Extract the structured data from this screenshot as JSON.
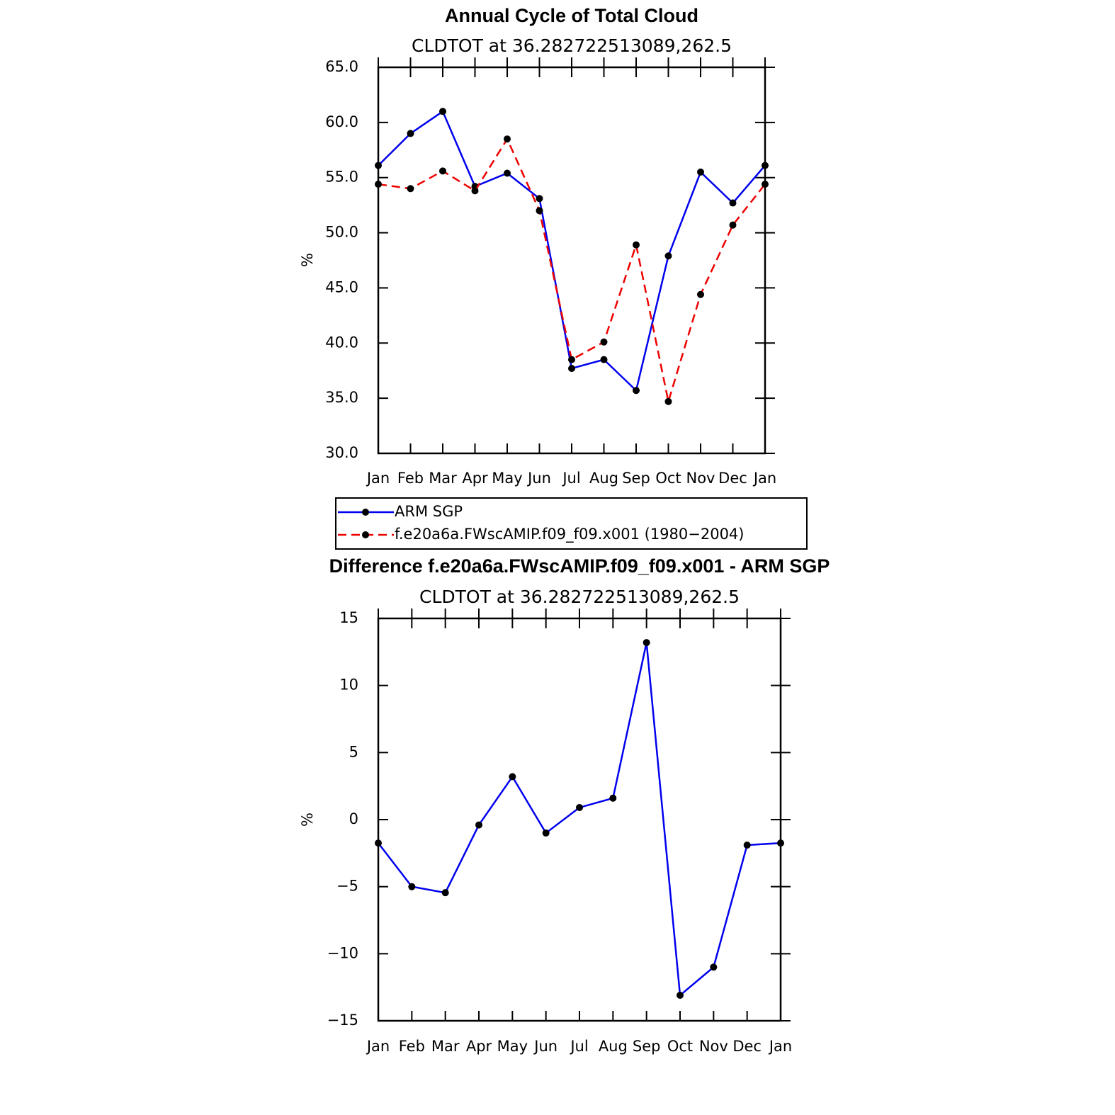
{
  "chart_data": [
    {
      "type": "line",
      "title": "Annual Cycle of Total Cloud",
      "subtitle": "CLDTOT at 36.282722513089,262.5",
      "y_label": "%",
      "categories": [
        "Jan",
        "Feb",
        "Mar",
        "Apr",
        "May",
        "Jun",
        "Jul",
        "Aug",
        "Sep",
        "Oct",
        "Nov",
        "Dec",
        "Jan"
      ],
      "ylim": [
        30,
        65
      ],
      "yticks": [
        {
          "value": 30,
          "label": "30.0"
        },
        {
          "value": 35,
          "label": "35.0"
        },
        {
          "value": 40,
          "label": "40.0"
        },
        {
          "value": 45,
          "label": "45.0"
        },
        {
          "value": 50,
          "label": "50.0"
        },
        {
          "value": 55,
          "label": "55.0"
        },
        {
          "value": 60,
          "label": "60.0"
        },
        {
          "value": 65,
          "label": "65.0"
        }
      ],
      "series": [
        {
          "name": "ARM SGP",
          "color": "#0000ee",
          "line_style": "solid",
          "values": [
            56.1,
            59.0,
            61.0,
            54.2,
            55.4,
            53.1,
            37.7,
            38.5,
            35.7,
            47.9,
            55.5,
            52.7,
            56.1
          ]
        },
        {
          "name": "f.e20a6a.FWscAMIP.f09_f09.x001 (1980−2004)",
          "color": "#ee0000",
          "line_style": "dashed",
          "values": [
            54.4,
            54.0,
            55.6,
            53.8,
            58.5,
            52.0,
            38.5,
            40.1,
            48.9,
            34.7,
            44.4,
            50.7,
            54.4
          ]
        }
      ]
    },
    {
      "type": "line",
      "title": "Difference f.e20a6a.FWscAMIP.f09_f09.x001 - ARM SGP",
      "subtitle": "CLDTOT at 36.282722513089,262.5",
      "y_label": "%",
      "categories": [
        "Jan",
        "Feb",
        "Mar",
        "Apr",
        "May",
        "Jun",
        "Jul",
        "Aug",
        "Sep",
        "Oct",
        "Nov",
        "Dec",
        "Jan"
      ],
      "ylim": [
        -15,
        15
      ],
      "yticks": [
        {
          "value": -15,
          "label": "−15"
        },
        {
          "value": -10,
          "label": "−10"
        },
        {
          "value": -5,
          "label": "−5"
        },
        0,
        5,
        10,
        15
      ],
      "series": [
        {
          "color": "#0000ee",
          "line_style": "solid",
          "values": [
            -1.75,
            -5.0,
            -5.45,
            -0.4,
            3.2,
            -1.0,
            0.9,
            1.6,
            13.2,
            -13.1,
            -11.0,
            -1.9,
            -1.75
          ]
        }
      ]
    }
  ]
}
